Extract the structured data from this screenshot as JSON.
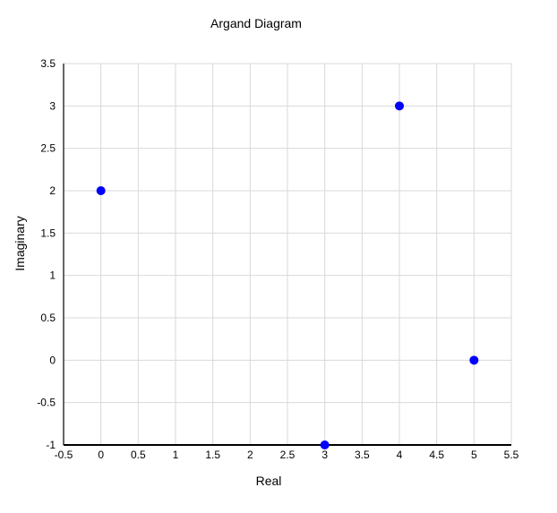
{
  "chart_data": {
    "type": "scatter",
    "title": "Argand Diagram",
    "xlabel": "Real",
    "ylabel": "Imaginary",
    "xlim": [
      -0.5,
      5.5
    ],
    "ylim": [
      -1,
      3.5
    ],
    "x_ticks": [
      "-0.5",
      "0",
      "0.5",
      "1",
      "1.5",
      "2",
      "2.5",
      "3",
      "3.5",
      "4",
      "4.5",
      "5",
      "5.5"
    ],
    "y_ticks": [
      "-1",
      "-0.5",
      "0",
      "0.5",
      "1",
      "1.5",
      "2",
      "2.5",
      "3",
      "3.5"
    ],
    "grid": true,
    "legend": "none",
    "series": [
      {
        "color": "#0000ff",
        "points": [
          {
            "x": 0,
            "y": 2
          },
          {
            "x": 4,
            "y": 3
          },
          {
            "x": 3,
            "y": -1
          },
          {
            "x": 5,
            "y": 0
          }
        ]
      }
    ]
  }
}
